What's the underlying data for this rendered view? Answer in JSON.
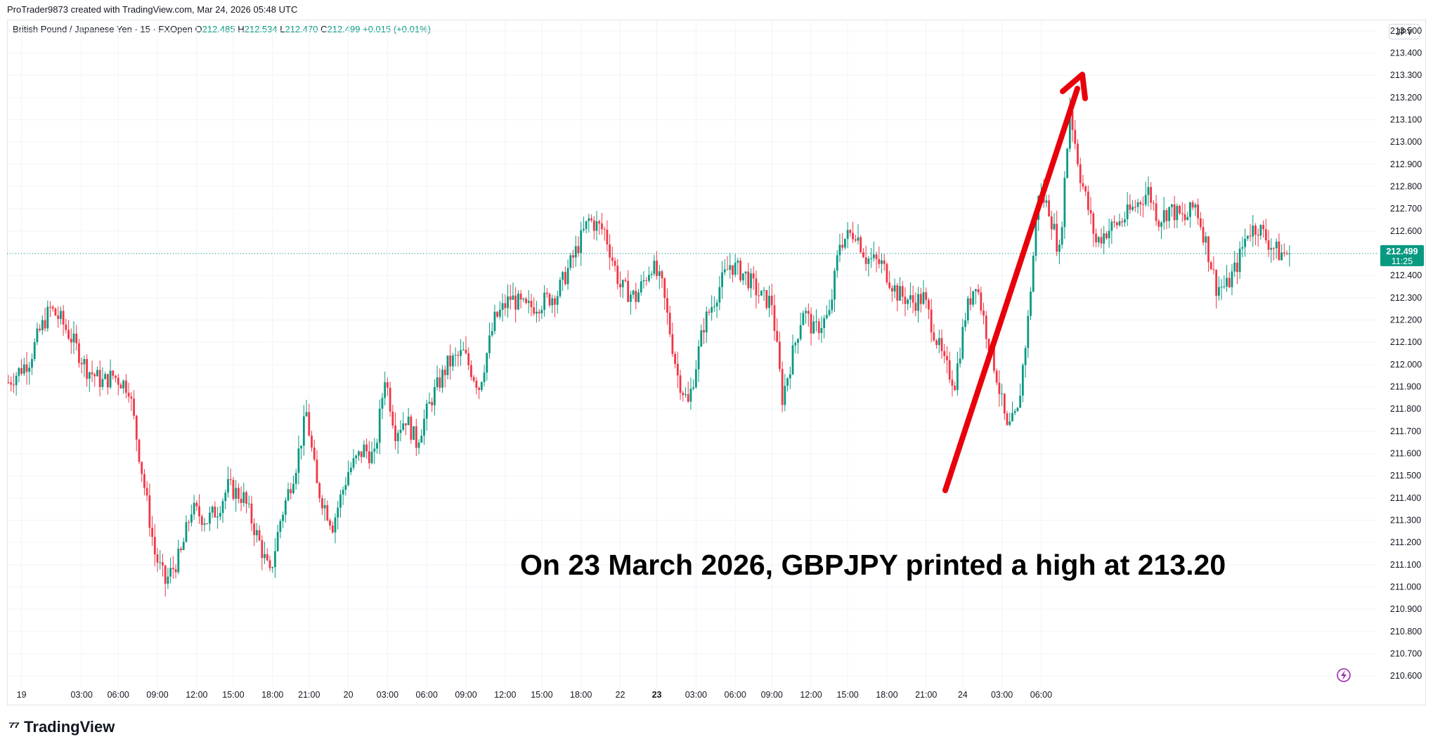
{
  "header": {
    "attribution": "ProTrader9873 created with TradingView.com, Mar 24, 2026 05:48 UTC"
  },
  "legend": {
    "symbol": "British Pound / Japanese Yen · 15 · FXOpen",
    "open_label": "O",
    "open": "212.485",
    "high_label": "H",
    "high": "212.534",
    "low_label": "L",
    "low": "212.470",
    "close_label": "C",
    "close": "212.499",
    "change": "+0.015 (+0.01%)"
  },
  "currency": "JPY",
  "last_price": {
    "price": "212.499",
    "countdown": "11:25"
  },
  "annotation": "On 23 March 2026, GBPJPY printed a high at 213.20",
  "footer": {
    "brand": "TradingView"
  },
  "colors": {
    "up": "#089981",
    "down": "#f23645",
    "arrow": "#e8000b",
    "grid": "#f0f3fa"
  },
  "chart_data": {
    "type": "candlestick",
    "symbol": "GBPJPY",
    "interval": "15",
    "ylim": [
      210.55,
      213.55
    ],
    "y_ticks": [
      "210.600",
      "210.700",
      "210.800",
      "210.900",
      "211.000",
      "211.100",
      "211.200",
      "211.300",
      "211.400",
      "211.500",
      "211.600",
      "211.700",
      "211.800",
      "211.900",
      "212.000",
      "212.100",
      "212.200",
      "212.300",
      "212.400",
      "212.500",
      "212.600",
      "212.700",
      "212.800",
      "212.900",
      "213.000",
      "213.100",
      "213.200",
      "213.300",
      "213.400",
      "213.500"
    ],
    "x_ticks": [
      "19",
      "03:00",
      "06:00",
      "09:00",
      "12:00",
      "15:00",
      "18:00",
      "21:00",
      "20",
      "03:00",
      "06:00",
      "09:00",
      "12:00",
      "15:00",
      "18:00",
      "22",
      "23",
      "03:00",
      "06:00",
      "09:00",
      "12:00",
      "15:00",
      "18:00",
      "21:00",
      "24",
      "03:00",
      "06:00"
    ],
    "anchors": [
      [
        0,
        211.92
      ],
      [
        8,
        212.02
      ],
      [
        12,
        212.15
      ],
      [
        16,
        212.25
      ],
      [
        20,
        212.2
      ],
      [
        24,
        212.12
      ],
      [
        30,
        211.98
      ],
      [
        36,
        211.92
      ],
      [
        40,
        211.95
      ],
      [
        46,
        211.9
      ],
      [
        50,
        211.6
      ],
      [
        56,
        211.15
      ],
      [
        60,
        211.02
      ],
      [
        66,
        211.15
      ],
      [
        70,
        211.35
      ],
      [
        76,
        211.3
      ],
      [
        80,
        211.35
      ],
      [
        84,
        211.45
      ],
      [
        90,
        211.4
      ],
      [
        96,
        211.2
      ],
      [
        100,
        211.05
      ],
      [
        104,
        211.3
      ],
      [
        110,
        211.55
      ],
      [
        114,
        211.78
      ],
      [
        118,
        211.45
      ],
      [
        124,
        211.28
      ],
      [
        130,
        211.52
      ],
      [
        136,
        211.62
      ],
      [
        140,
        211.58
      ],
      [
        144,
        211.95
      ],
      [
        148,
        211.7
      ],
      [
        152,
        211.76
      ],
      [
        156,
        211.65
      ],
      [
        162,
        211.85
      ],
      [
        168,
        212.0
      ],
      [
        174,
        212.05
      ],
      [
        180,
        211.9
      ],
      [
        186,
        212.2
      ],
      [
        192,
        212.3
      ],
      [
        198,
        212.25
      ],
      [
        204,
        212.28
      ],
      [
        210,
        212.32
      ],
      [
        216,
        212.48
      ],
      [
        222,
        212.65
      ],
      [
        228,
        212.6
      ],
      [
        234,
        212.35
      ],
      [
        240,
        212.3
      ],
      [
        246,
        212.45
      ],
      [
        250,
        212.35
      ],
      [
        256,
        211.95
      ],
      [
        260,
        211.82
      ],
      [
        266,
        212.18
      ],
      [
        272,
        212.35
      ],
      [
        276,
        212.45
      ],
      [
        282,
        212.4
      ],
      [
        288,
        212.3
      ],
      [
        292,
        212.28
      ],
      [
        296,
        211.85
      ],
      [
        300,
        212.05
      ],
      [
        304,
        212.25
      ],
      [
        308,
        212.15
      ],
      [
        314,
        212.22
      ],
      [
        318,
        212.55
      ],
      [
        324,
        212.6
      ],
      [
        328,
        212.48
      ],
      [
        334,
        212.45
      ],
      [
        340,
        212.32
      ],
      [
        346,
        212.28
      ],
      [
        350,
        212.3
      ],
      [
        354,
        212.15
      ],
      [
        358,
        212.0
      ],
      [
        362,
        211.92
      ],
      [
        366,
        212.22
      ],
      [
        370,
        212.38
      ],
      [
        374,
        212.15
      ],
      [
        378,
        211.95
      ],
      [
        382,
        211.7
      ],
      [
        386,
        211.78
      ],
      [
        390,
        212.2
      ],
      [
        394,
        212.78
      ],
      [
        398,
        212.7
      ],
      [
        402,
        212.5
      ],
      [
        406,
        213.15
      ],
      [
        410,
        212.85
      ],
      [
        416,
        212.55
      ],
      [
        420,
        212.6
      ],
      [
        426,
        212.65
      ],
      [
        430,
        212.7
      ],
      [
        436,
        212.78
      ],
      [
        440,
        212.65
      ],
      [
        444,
        212.7
      ],
      [
        450,
        212.65
      ],
      [
        454,
        212.72
      ],
      [
        458,
        212.55
      ],
      [
        462,
        212.35
      ],
      [
        466,
        212.35
      ],
      [
        470,
        212.45
      ],
      [
        474,
        212.6
      ],
      [
        478,
        212.62
      ],
      [
        482,
        212.55
      ],
      [
        486,
        212.5
      ],
      [
        490,
        212.5
      ]
    ],
    "high": 213.2,
    "last": 212.499
  }
}
